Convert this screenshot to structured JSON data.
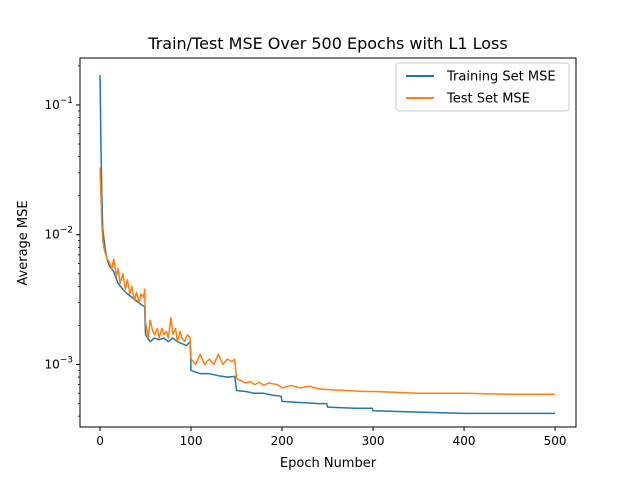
{
  "chart_data": {
    "type": "line",
    "title": "Train/Test MSE Over 500 Epochs with L1 Loss",
    "xlabel": "Epoch Number",
    "ylabel": "Average MSE",
    "xlim": [
      -22,
      523
    ],
    "ylim": [
      0.00033,
      0.23
    ],
    "y_scale": "log",
    "x_ticks": [
      0,
      100,
      200,
      300,
      400,
      500
    ],
    "x_tick_labels": [
      "0",
      "100",
      "200",
      "300",
      "400",
      "500"
    ],
    "y_major_ticks": [
      0.001,
      0.01,
      0.1
    ],
    "y_tick_labels": [
      {
        "base": "10",
        "exp": "−3"
      },
      {
        "base": "10",
        "exp": "−2"
      },
      {
        "base": "10",
        "exp": "−1"
      }
    ],
    "grid": false,
    "legend_position": "top-right",
    "series": [
      {
        "name": "Training Set MSE",
        "color": "#1f77b4",
        "points": [
          [
            0,
            0.17
          ],
          [
            1,
            0.05
          ],
          [
            2,
            0.02
          ],
          [
            3,
            0.011
          ],
          [
            5,
            0.0085
          ],
          [
            7,
            0.0068
          ],
          [
            10,
            0.0058
          ],
          [
            15,
            0.0052
          ],
          [
            20,
            0.0042
          ],
          [
            25,
            0.0038
          ],
          [
            30,
            0.0035
          ],
          [
            35,
            0.0033
          ],
          [
            40,
            0.0031
          ],
          [
            45,
            0.0029
          ],
          [
            49,
            0.0028
          ],
          [
            50,
            0.0017
          ],
          [
            55,
            0.0015
          ],
          [
            60,
            0.0016
          ],
          [
            65,
            0.00155
          ],
          [
            70,
            0.0016
          ],
          [
            75,
            0.0015
          ],
          [
            80,
            0.0016
          ],
          [
            85,
            0.0015
          ],
          [
            90,
            0.00145
          ],
          [
            95,
            0.0014
          ],
          [
            99,
            0.0015
          ],
          [
            100,
            0.0009
          ],
          [
            110,
            0.00085
          ],
          [
            120,
            0.00085
          ],
          [
            130,
            0.00082
          ],
          [
            140,
            0.0008
          ],
          [
            148,
            0.00081
          ],
          [
            150,
            0.00063
          ],
          [
            160,
            0.00062
          ],
          [
            170,
            0.0006
          ],
          [
            180,
            0.0006
          ],
          [
            190,
            0.00058
          ],
          [
            199,
            0.00057
          ],
          [
            200,
            0.00052
          ],
          [
            220,
            0.00051
          ],
          [
            240,
            0.0005
          ],
          [
            249,
            0.0005
          ],
          [
            250,
            0.00047
          ],
          [
            280,
            0.00046
          ],
          [
            299,
            0.00046
          ],
          [
            300,
            0.00044
          ],
          [
            350,
            0.00043
          ],
          [
            400,
            0.00042
          ],
          [
            450,
            0.00042
          ],
          [
            500,
            0.00042
          ]
        ]
      },
      {
        "name": "Test Set MSE",
        "color": "#ff7f0e",
        "points": [
          [
            0,
            0.033
          ],
          [
            1,
            0.02
          ],
          [
            2,
            0.012
          ],
          [
            3,
            0.009
          ],
          [
            5,
            0.0075
          ],
          [
            8,
            0.0065
          ],
          [
            10,
            0.0062
          ],
          [
            13,
            0.0055
          ],
          [
            15,
            0.0065
          ],
          [
            18,
            0.0048
          ],
          [
            20,
            0.0055
          ],
          [
            22,
            0.0042
          ],
          [
            25,
            0.005
          ],
          [
            28,
            0.0038
          ],
          [
            30,
            0.0045
          ],
          [
            33,
            0.0035
          ],
          [
            35,
            0.004
          ],
          [
            38,
            0.0031
          ],
          [
            40,
            0.0036
          ],
          [
            43,
            0.003
          ],
          [
            45,
            0.0035
          ],
          [
            48,
            0.0033
          ],
          [
            49,
            0.0038
          ],
          [
            50,
            0.0021
          ],
          [
            53,
            0.0016
          ],
          [
            55,
            0.0022
          ],
          [
            58,
            0.0018
          ],
          [
            60,
            0.0017
          ],
          [
            63,
            0.0019
          ],
          [
            65,
            0.0016
          ],
          [
            68,
            0.0019
          ],
          [
            70,
            0.0017
          ],
          [
            73,
            0.0018
          ],
          [
            75,
            0.0016
          ],
          [
            78,
            0.0023
          ],
          [
            80,
            0.0017
          ],
          [
            83,
            0.0019
          ],
          [
            85,
            0.0015
          ],
          [
            88,
            0.0018
          ],
          [
            90,
            0.0016
          ],
          [
            93,
            0.0015
          ],
          [
            96,
            0.0017
          ],
          [
            99,
            0.0016
          ],
          [
            100,
            0.0011
          ],
          [
            105,
            0.001
          ],
          [
            110,
            0.0012
          ],
          [
            115,
            0.001
          ],
          [
            120,
            0.0011
          ],
          [
            125,
            0.001
          ],
          [
            130,
            0.0012
          ],
          [
            135,
            0.001
          ],
          [
            140,
            0.0011
          ],
          [
            145,
            0.00105
          ],
          [
            148,
            0.0011
          ],
          [
            150,
            0.00078
          ],
          [
            155,
            0.00075
          ],
          [
            160,
            0.00072
          ],
          [
            165,
            0.00074
          ],
          [
            170,
            0.0007
          ],
          [
            175,
            0.00073
          ],
          [
            180,
            0.00069
          ],
          [
            185,
            0.00072
          ],
          [
            190,
            0.00071
          ],
          [
            195,
            0.0007
          ],
          [
            200,
            0.00066
          ],
          [
            210,
            0.00069
          ],
          [
            220,
            0.00066
          ],
          [
            230,
            0.00068
          ],
          [
            240,
            0.00065
          ],
          [
            250,
            0.00064
          ],
          [
            270,
            0.00063
          ],
          [
            290,
            0.00062
          ],
          [
            300,
            0.00062
          ],
          [
            350,
            0.0006
          ],
          [
            400,
            0.0006
          ],
          [
            450,
            0.00059
          ],
          [
            500,
            0.00059
          ]
        ]
      }
    ]
  }
}
